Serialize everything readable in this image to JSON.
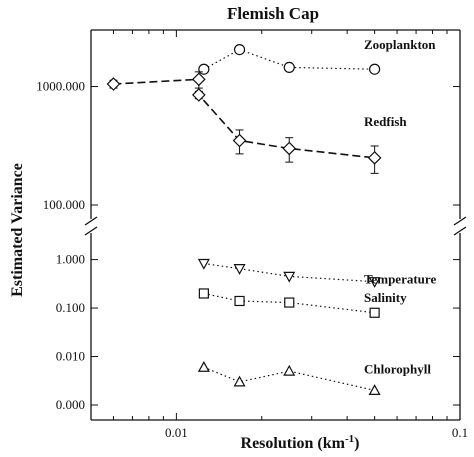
{
  "chart_data": {
    "type": "scatter",
    "title": "Flemish Cap",
    "xlabel": "Resolution (km",
    "xlabel_sup": "-1",
    "xlabel_close": ")",
    "ylabel": "Estimated Variance",
    "x_scale": "log",
    "xlim": [
      0.005,
      0.1
    ],
    "x_ticks": [
      {
        "value": 0.01,
        "label": "0.01"
      },
      {
        "value": 0.1,
        "label": "0.1"
      }
    ],
    "y_axis_break": true,
    "upper_panel": {
      "y_scale": "log",
      "ylim": [
        100,
        3000
      ],
      "y_ticks": [
        {
          "value": 100,
          "label": "100.000"
        },
        {
          "value": 1000,
          "label": "1000.000"
        }
      ]
    },
    "lower_panel": {
      "y_scale": "log",
      "ylim": [
        0.001,
        2
      ],
      "y_ticks": [
        {
          "value": 0.001,
          "label": "0.000"
        },
        {
          "value": 0.01,
          "label": "0.010"
        },
        {
          "value": 0.1,
          "label": "0.100"
        },
        {
          "value": 1,
          "label": "1.000"
        }
      ]
    },
    "series": [
      {
        "name": "Zooplankton",
        "panel": "upper",
        "marker": "circle",
        "line": "dotted",
        "x": [
          0.0125,
          0.0167,
          0.025,
          0.05
        ],
        "y": [
          1400,
          2050,
          1450,
          1400
        ]
      },
      {
        "name": "Redfish",
        "panel": "upper",
        "marker": "diamond",
        "line": "dashed",
        "x": [
          0.006,
          0.012,
          0.012,
          0.0167,
          0.025,
          0.05
        ],
        "y": [
          1050,
          1150,
          850,
          350,
          300,
          250
        ],
        "err": [
          80,
          180,
          60,
          80,
          70,
          65
        ]
      },
      {
        "name": "Temperature",
        "panel": "lower",
        "marker": "triangle-down",
        "line": "dotted",
        "x": [
          0.0125,
          0.0167,
          0.025,
          0.05
        ],
        "y": [
          0.83,
          0.65,
          0.45,
          0.35
        ]
      },
      {
        "name": "Salinity",
        "panel": "lower",
        "marker": "square",
        "line": "dotted",
        "x": [
          0.0125,
          0.0167,
          0.025,
          0.05
        ],
        "y": [
          0.2,
          0.14,
          0.13,
          0.08
        ]
      },
      {
        "name": "Chlorophyll",
        "panel": "lower",
        "marker": "triangle-up",
        "line": "dotted",
        "x": [
          0.0125,
          0.0167,
          0.025,
          0.05
        ],
        "y": [
          0.006,
          0.003,
          0.005,
          0.002
        ]
      }
    ]
  }
}
